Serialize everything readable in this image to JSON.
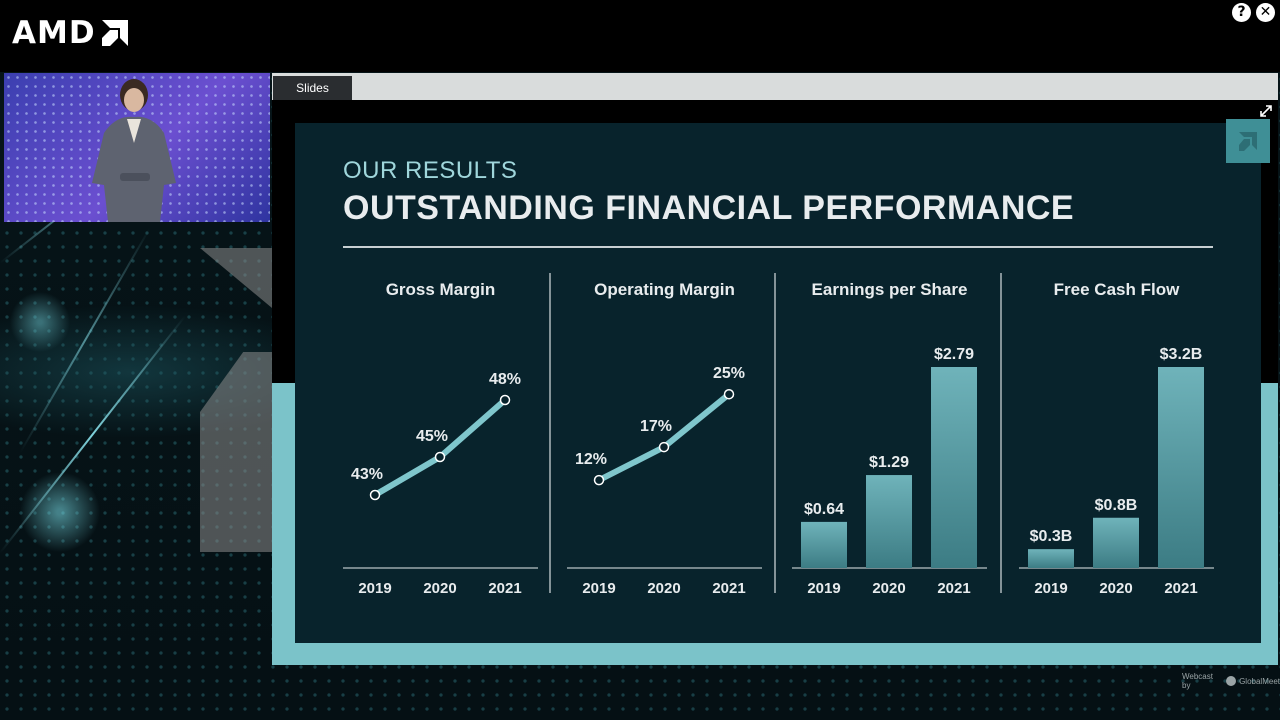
{
  "window": {
    "brand": "AMD",
    "help_label": "?",
    "close_label": "✕"
  },
  "slides_panel": {
    "tab_label": "Slides",
    "expand_icon": "expand-icon"
  },
  "slide": {
    "subtitle": "OUR RESULTS",
    "title": "OUTSTANDING FINANCIAL PERFORMANCE"
  },
  "colors": {
    "slide_bg": "#08232c",
    "accent": "#7bc3c9",
    "bar_top": "#6fb3ba",
    "bar_bottom": "#3c7c84",
    "line": "#7fc6cc"
  },
  "chart_data": [
    {
      "type": "line",
      "title": "Gross Margin",
      "categories": [
        "2019",
        "2020",
        "2021"
      ],
      "values": [
        43,
        45,
        48
      ],
      "labels": [
        "43%",
        "45%",
        "48%"
      ],
      "ylim": [
        41,
        49
      ]
    },
    {
      "type": "line",
      "title": "Operating Margin",
      "categories": [
        "2019",
        "2020",
        "2021"
      ],
      "values": [
        12,
        17,
        25
      ],
      "labels": [
        "12%",
        "17%",
        "25%"
      ],
      "ylim": [
        4,
        27
      ]
    },
    {
      "type": "bar",
      "title": "Earnings per Share",
      "categories": [
        "2019",
        "2020",
        "2021"
      ],
      "values": [
        0.64,
        1.29,
        2.79
      ],
      "labels": [
        "$0.64",
        "$1.29",
        "$2.79"
      ],
      "ylim": [
        0,
        2.79
      ]
    },
    {
      "type": "bar",
      "title": "Free Cash Flow",
      "categories": [
        "2019",
        "2020",
        "2021"
      ],
      "values": [
        0.3,
        0.8,
        3.2
      ],
      "labels": [
        "$0.3B",
        "$0.8B",
        "$3.2B"
      ],
      "ylim": [
        0,
        3.2
      ]
    }
  ],
  "footer": {
    "webcast_by": "Webcast by",
    "provider": "GlobalMeet"
  }
}
